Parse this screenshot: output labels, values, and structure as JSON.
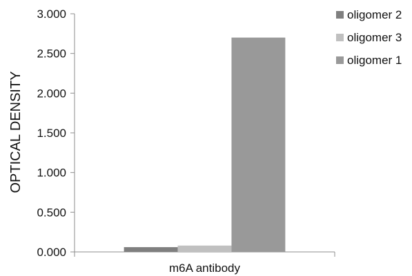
{
  "chart_data": {
    "type": "bar",
    "categories": [
      "m6A antibody"
    ],
    "series": [
      {
        "name": "oligomer 2",
        "values": [
          0.06
        ],
        "color": "#7f7f7f"
      },
      {
        "name": "oligomer 3",
        "values": [
          0.08
        ],
        "color": "#c0c0c0"
      },
      {
        "name": "oligomer 1",
        "values": [
          2.7
        ],
        "color": "#999999"
      }
    ],
    "title": "",
    "xlabel": "",
    "ylabel": "OPTICAL DENSITY",
    "ylim": [
      0,
      3
    ],
    "yticks": [
      "0.000",
      "0.500",
      "1.000",
      "1.500",
      "2.000",
      "2.500",
      "3.000"
    ],
    "grid": false,
    "legend": "top-right"
  }
}
